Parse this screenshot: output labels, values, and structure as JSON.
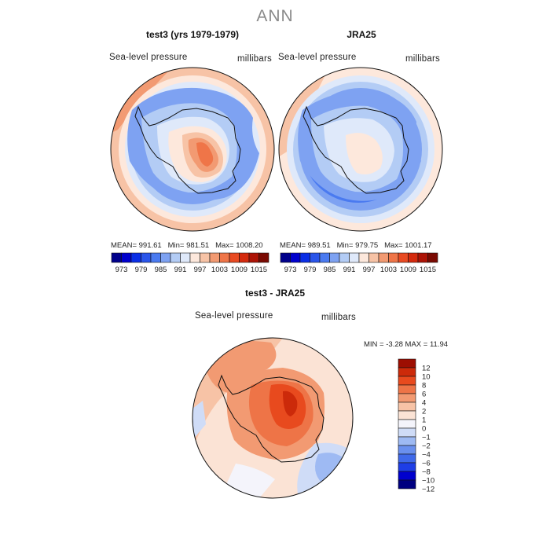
{
  "suptitle": "ANN",
  "panels": [
    {
      "title": "test3 (yrs 1979-1979)",
      "variable": "Sea-level pressure",
      "units": "millibars",
      "stats": {
        "mean_label": "MEAN=",
        "mean": "991.61",
        "min_label": "Min=",
        "min": "981.51",
        "max_label": "Max=",
        "max": "1008.20"
      }
    },
    {
      "title": "JRA25",
      "variable": "Sea-level pressure",
      "units": "millibars",
      "stats": {
        "mean_label": "MEAN=",
        "mean": "989.51",
        "min_label": "Min=",
        "min": "979.75",
        "max_label": "Max=",
        "max": "1001.17"
      }
    },
    {
      "title": "test3 - JRA25",
      "variable": "Sea-level pressure",
      "units": "millibars",
      "stats": {
        "min_label": "MIN =",
        "min": "-3.28",
        "max_label": "MAX =",
        "max": "11.94"
      }
    }
  ],
  "colors": {
    "abs": [
      "#00008b",
      "#0000cd",
      "#0a2ee6",
      "#2a55ea",
      "#4a7af0",
      "#7ea2f2",
      "#b3ccf5",
      "#dfe9fa",
      "#fde8dc",
      "#f7c3a6",
      "#f29a72",
      "#ef7548",
      "#e84a22",
      "#d42a0e",
      "#ad1306",
      "#7a0a02"
    ],
    "diff": [
      "#000080",
      "#0000cd",
      "#1e3ee6",
      "#3f69ea",
      "#6a90ee",
      "#9ebaf3",
      "#cfdcf7",
      "#f4f4fb",
      "#fbe3d5",
      "#f7c3a6",
      "#f29a72",
      "#ee7447",
      "#e84a1e",
      "#cc2a0a",
      "#9d0e02"
    ]
  },
  "chart_data": [
    {
      "type": "heatmap",
      "title": "test3 (yrs 1979-1979)",
      "projection": "south-polar stereographic",
      "variable": "Sea-level pressure",
      "units": "millibars",
      "colorbar_ticks": [
        "973",
        "979",
        "985",
        "991",
        "997",
        "1003",
        "1009",
        "1015"
      ],
      "levels": [
        970,
        973,
        976,
        979,
        982,
        985,
        988,
        991,
        994,
        997,
        1000,
        1003,
        1006,
        1009,
        1012,
        1015
      ],
      "mean": 991.61,
      "min": 981.51,
      "max": 1008.2
    },
    {
      "type": "heatmap",
      "title": "JRA25",
      "projection": "south-polar stereographic",
      "variable": "Sea-level pressure",
      "units": "millibars",
      "colorbar_ticks": [
        "973",
        "979",
        "985",
        "991",
        "997",
        "1003",
        "1009",
        "1015"
      ],
      "levels": [
        970,
        973,
        976,
        979,
        982,
        985,
        988,
        991,
        994,
        997,
        1000,
        1003,
        1006,
        1009,
        1012,
        1015
      ],
      "mean": 989.51,
      "min": 979.75,
      "max": 1001.17
    },
    {
      "type": "heatmap",
      "title": "test3 - JRA25",
      "projection": "south-polar stereographic",
      "variable": "Sea-level pressure",
      "units": "millibars",
      "colorbar_ticks": [
        "12",
        "10",
        "8",
        "6",
        "4",
        "2",
        "1",
        "0",
        "−1",
        "−2",
        "−4",
        "−6",
        "−8",
        "−10",
        "−12"
      ],
      "min": -3.28,
      "max": 11.94
    }
  ]
}
